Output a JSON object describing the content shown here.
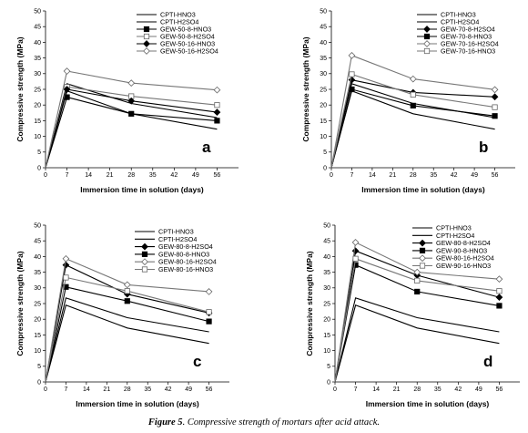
{
  "caption": {
    "label": "Figure 5",
    "text": ". Compressive strength of mortars after acid attack."
  },
  "chart_data": [
    {
      "type": "line",
      "panel_letter": "a",
      "xlabel": "Immersion time in solution (days)",
      "ylabel": "Compressive strength (MPa)",
      "xlim": [
        0,
        63
      ],
      "ylim": [
        0,
        50
      ],
      "xticks": [
        0,
        7,
        14,
        21,
        28,
        35,
        42,
        49,
        56
      ],
      "yticks": [
        0,
        5,
        10,
        15,
        20,
        25,
        30,
        35,
        40,
        45,
        50
      ],
      "grid": false,
      "legend_position": "top-right",
      "x": [
        0,
        7,
        28,
        56
      ],
      "series": [
        {
          "name": "CPTI-HNO3",
          "values": [
            0,
            24.5,
            17.2,
            12.3
          ],
          "color": "#000000",
          "marker": "none"
        },
        {
          "name": "CPTI-H2SO4",
          "values": [
            0,
            26.8,
            20.5,
            16.0
          ],
          "color": "#000000",
          "marker": "none"
        },
        {
          "name": "GEW-50-8-HNO3",
          "values": [
            0,
            22.5,
            17.2,
            15.0
          ],
          "color": "#000000",
          "marker": "square-filled"
        },
        {
          "name": "GEW-50-8-H2SO4",
          "values": [
            0,
            25.8,
            22.8,
            20.0
          ],
          "color": "#777777",
          "marker": "square-open"
        },
        {
          "name": "GEW-50-16-HNO3",
          "values": [
            0,
            25.0,
            21.3,
            17.7
          ],
          "color": "#000000",
          "marker": "diamond-filled"
        },
        {
          "name": "GEW-50-16-H2SO4",
          "values": [
            0,
            30.8,
            27.0,
            24.8
          ],
          "color": "#777777",
          "marker": "diamond-open"
        }
      ]
    },
    {
      "type": "line",
      "panel_letter": "b",
      "xlabel": "Immersion time in solution (days)",
      "ylabel": "Compressive strength (MPa)",
      "xlim": [
        0,
        63
      ],
      "ylim": [
        0,
        50
      ],
      "xticks": [
        0,
        7,
        14,
        21,
        28,
        35,
        42,
        49,
        56
      ],
      "yticks": [
        0,
        5,
        10,
        15,
        20,
        25,
        30,
        35,
        40,
        45,
        50
      ],
      "grid": false,
      "legend_position": "top-right",
      "x": [
        0,
        7,
        28,
        56
      ],
      "series": [
        {
          "name": "CPTI-HNO3",
          "values": [
            0,
            24.5,
            17.2,
            12.3
          ],
          "color": "#000000",
          "marker": "none"
        },
        {
          "name": "CPTI-H2SO4",
          "values": [
            0,
            26.8,
            20.5,
            16.0
          ],
          "color": "#000000",
          "marker": "none"
        },
        {
          "name": "GEW-70-8-H2SO4",
          "values": [
            0,
            28.0,
            24.0,
            22.6
          ],
          "color": "#000000",
          "marker": "diamond-filled"
        },
        {
          "name": "GEW-70-8-HNO3",
          "values": [
            0,
            25.0,
            19.8,
            16.5
          ],
          "color": "#000000",
          "marker": "square-filled"
        },
        {
          "name": "GEW-70-16-H2SO4",
          "values": [
            0,
            35.8,
            28.3,
            24.9
          ],
          "color": "#777777",
          "marker": "diamond-open"
        },
        {
          "name": "GEW-70-16-HNO3",
          "values": [
            0,
            29.8,
            23.3,
            19.3
          ],
          "color": "#777777",
          "marker": "square-open"
        }
      ]
    },
    {
      "type": "line",
      "panel_letter": "c",
      "xlabel": "Immersion time in solution (days)",
      "ylabel": "Compressive strength (MPa)",
      "xlim": [
        0,
        63
      ],
      "ylim": [
        0,
        50
      ],
      "xticks": [
        0,
        7,
        14,
        21,
        28,
        35,
        42,
        49,
        56
      ],
      "yticks": [
        0,
        5,
        10,
        15,
        20,
        25,
        30,
        35,
        40,
        45,
        50
      ],
      "grid": false,
      "legend_position": "top-right",
      "x": [
        0,
        7,
        28,
        56
      ],
      "series": [
        {
          "name": "CPTI-HNO3",
          "values": [
            0,
            24.5,
            17.2,
            12.3
          ],
          "color": "#000000",
          "marker": "none"
        },
        {
          "name": "CPTI-H2SO4",
          "values": [
            0,
            26.8,
            20.5,
            16.0
          ],
          "color": "#000000",
          "marker": "none"
        },
        {
          "name": "GEW-80-8-H2SO4",
          "values": [
            0,
            37.3,
            28.0,
            22.0
          ],
          "color": "#000000",
          "marker": "diamond-filled"
        },
        {
          "name": "GEW-80-8-HNO3",
          "values": [
            0,
            30.3,
            25.8,
            19.3
          ],
          "color": "#000000",
          "marker": "square-filled"
        },
        {
          "name": "GEW-80-16-H2SO4",
          "values": [
            0,
            39.3,
            31.0,
            28.8
          ],
          "color": "#777777",
          "marker": "diamond-open"
        },
        {
          "name": "GEW-80-16-HNO3",
          "values": [
            0,
            33.3,
            29.0,
            22.3
          ],
          "color": "#777777",
          "marker": "square-open"
        }
      ]
    },
    {
      "type": "line",
      "panel_letter": "d",
      "xlabel": "Immersion time in solution (days)",
      "ylabel": "Compressive strength (MPa)",
      "xlim": [
        0,
        63
      ],
      "ylim": [
        0,
        50
      ],
      "xticks": [
        0,
        7,
        14,
        21,
        28,
        35,
        42,
        49,
        56
      ],
      "yticks": [
        0,
        5,
        10,
        15,
        20,
        25,
        30,
        35,
        40,
        45,
        50
      ],
      "grid": false,
      "legend_position": "top-right",
      "x": [
        0,
        7,
        28,
        56
      ],
      "series": [
        {
          "name": "CPTI-HNO3",
          "values": [
            0,
            24.5,
            17.2,
            12.3
          ],
          "color": "#000000",
          "marker": "none"
        },
        {
          "name": "CPTI-H2SO4",
          "values": [
            0,
            26.8,
            20.5,
            16.0
          ],
          "color": "#000000",
          "marker": "none"
        },
        {
          "name": "GEW-80-8-H2SO4",
          "values": [
            0,
            41.8,
            34.0,
            27.0
          ],
          "color": "#000000",
          "marker": "diamond-filled"
        },
        {
          "name": "GEW-90-8-HNO3",
          "values": [
            0,
            37.3,
            28.8,
            24.3
          ],
          "color": "#000000",
          "marker": "square-filled"
        },
        {
          "name": "GEW-80-16-H2SO4",
          "values": [
            0,
            44.5,
            35.0,
            32.8
          ],
          "color": "#777777",
          "marker": "diamond-open"
        },
        {
          "name": "GEW-90-16-HNO3",
          "values": [
            0,
            39.3,
            32.3,
            29.0
          ],
          "color": "#777777",
          "marker": "square-open"
        }
      ]
    }
  ]
}
